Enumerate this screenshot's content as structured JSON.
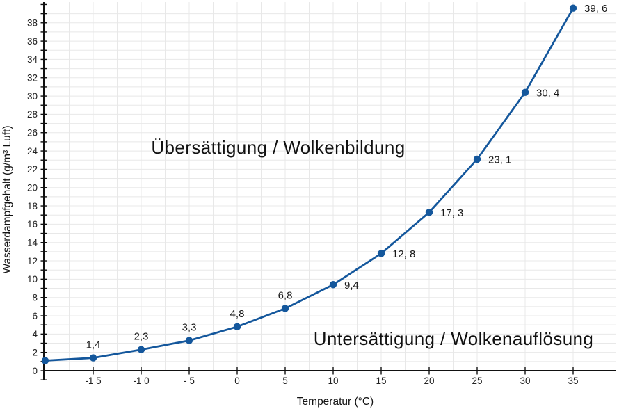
{
  "chart_data": {
    "type": "line",
    "title": "",
    "xlabel": "Temperatur (°C)",
    "ylabel": "Wasserdampfgehalt (g/m³ Luft)",
    "x": [
      -20,
      -15,
      -10,
      -5,
      0,
      5,
      10,
      15,
      20,
      25,
      30,
      35
    ],
    "y": [
      1.1,
      1.4,
      2.3,
      3.3,
      4.8,
      6.8,
      9.4,
      12.8,
      17.3,
      23.1,
      30.4,
      39.6
    ],
    "point_labels": [
      "",
      "1,4",
      "2,3",
      "3,3",
      "4,8",
      "6,8",
      "9,4",
      "12, 8",
      "17, 3",
      "23, 1",
      "30, 4",
      "39, 6"
    ],
    "point_label_pos": [
      "none",
      "above",
      "above",
      "above",
      "above",
      "above",
      "right",
      "right",
      "right",
      "right",
      "right",
      "right"
    ],
    "x_ticks": [
      {
        "value": -15,
        "label": "-1 5"
      },
      {
        "value": -10,
        "label": "-1 0"
      },
      {
        "value": -5,
        "label": "- 5"
      },
      {
        "value": 0,
        "label": "0"
      },
      {
        "value": 5,
        "label": "5"
      },
      {
        "value": 10,
        "label": "10"
      },
      {
        "value": 15,
        "label": "15"
      },
      {
        "value": 20,
        "label": "20"
      },
      {
        "value": 25,
        "label": "25"
      },
      {
        "value": 30,
        "label": "30"
      },
      {
        "value": 35,
        "label": "35"
      }
    ],
    "y_ticks": {
      "label_min": 0,
      "label_max": 38,
      "label_step": 2,
      "minor_step": 1,
      "minor_min": -1,
      "minor_max": 40
    },
    "xlim": [
      -20,
      39.4
    ],
    "ylim": [
      -1,
      40.2
    ],
    "grid": {
      "on": true,
      "x_minor_step": 2.5,
      "y_minor_step": 1
    },
    "legend": "none",
    "annotations": [
      {
        "text": "Übersättigung / Wolkenbildung",
        "x_data": 4.3,
        "y_data": 24.4
      },
      {
        "text": "Untersättigung / Wolkenauflösung",
        "x_data": 22.5,
        "y_data": 3.5
      }
    ],
    "colors": {
      "line": "#14579c",
      "marker": "#14579c",
      "grid": "#e8e8e8",
      "axis": "#111111",
      "text": "#1a1a1a"
    }
  }
}
